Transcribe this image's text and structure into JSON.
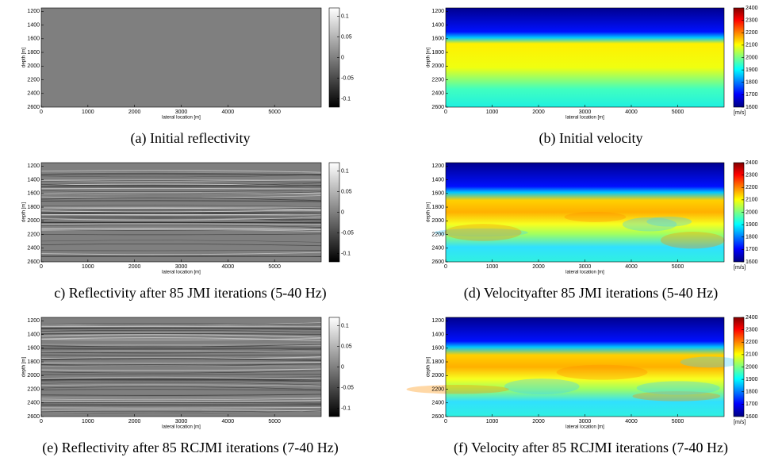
{
  "panels": [
    {
      "caption": "(a) Initial reflectivity",
      "ylabel": "depth [m]",
      "xlabel": "lateral location [m]",
      "xlim": [
        0,
        6000
      ],
      "ylim": [
        1150,
        2600
      ],
      "xticks": [
        0,
        1000,
        2000,
        3000,
        4000,
        5000
      ],
      "yticks": [
        1200,
        1400,
        1600,
        1800,
        2000,
        2200,
        2400,
        2600
      ],
      "colorbar": {
        "lim": [
          -0.12,
          0.12
        ],
        "ticks": [
          0.1,
          0.05,
          0,
          -0.05,
          -0.1
        ]
      }
    },
    {
      "caption": "(b) Initial velocity",
      "ylabel": "depth [m]",
      "xlabel": "lateral location [m]",
      "xlim": [
        0,
        6000
      ],
      "ylim": [
        1150,
        2600
      ],
      "xticks": [
        0,
        1000,
        2000,
        3000,
        4000,
        5000
      ],
      "yticks": [
        1200,
        1400,
        1600,
        1800,
        2000,
        2200,
        2400,
        2600
      ],
      "colorbar": {
        "lim": [
          1600,
          2400
        ],
        "ticks": [
          2400,
          2300,
          2200,
          2100,
          2000,
          1900,
          1800,
          1700,
          1600
        ],
        "unit": "[m/s]"
      }
    },
    {
      "caption": "c) Reflectivity after 85 JMI iterations (5-40 Hz)",
      "ylabel": "depth [m]",
      "xlabel": "lateral location [m]",
      "xlim": [
        0,
        6000
      ],
      "ylim": [
        1150,
        2600
      ],
      "xticks": [
        0,
        1000,
        2000,
        3000,
        4000,
        5000
      ],
      "yticks": [
        1200,
        1400,
        1600,
        1800,
        2000,
        2200,
        2400,
        2600
      ],
      "colorbar": {
        "lim": [
          -0.12,
          0.12
        ],
        "ticks": [
          0.1,
          0.05,
          0,
          -0.05,
          -0.1
        ]
      }
    },
    {
      "caption": "(d) Velocityafter 85 JMI iterations (5-40 Hz)",
      "ylabel": "depth [m]",
      "xlabel": "lateral location [m]",
      "xlim": [
        0,
        6000
      ],
      "ylim": [
        1150,
        2600
      ],
      "xticks": [
        0,
        1000,
        2000,
        3000,
        4000,
        5000
      ],
      "yticks": [
        1200,
        1400,
        1600,
        1800,
        2000,
        2200,
        2400,
        2600
      ],
      "colorbar": {
        "lim": [
          1600,
          2400
        ],
        "ticks": [
          2400,
          2300,
          2200,
          2100,
          2000,
          1900,
          1800,
          1700,
          1600
        ],
        "unit": "[m/s]"
      }
    },
    {
      "caption": "(e) Reflectivity after 85 RCJMI iterations (7-40 Hz)",
      "ylabel": "depth [m]",
      "xlabel": "lateral location [m]",
      "xlim": [
        0,
        6000
      ],
      "ylim": [
        1150,
        2600
      ],
      "xticks": [
        0,
        1000,
        2000,
        3000,
        4000,
        5000
      ],
      "yticks": [
        1200,
        1400,
        1600,
        1800,
        2000,
        2200,
        2400,
        2600
      ],
      "colorbar": {
        "lim": [
          -0.12,
          0.12
        ],
        "ticks": [
          0.1,
          0.05,
          0,
          -0.05,
          -0.1
        ]
      }
    },
    {
      "caption": "(f) Velocity after 85 RCJMI iterations (7-40 Hz)",
      "ylabel": "depth [m]",
      "xlabel": "lateral location [m]",
      "xlim": [
        0,
        6000
      ],
      "ylim": [
        1150,
        2600
      ],
      "xticks": [
        0,
        1000,
        2000,
        3000,
        4000,
        5000
      ],
      "yticks": [
        1200,
        1400,
        1600,
        1800,
        2000,
        2200,
        2400,
        2600
      ],
      "colorbar": {
        "lim": [
          1600,
          2400
        ],
        "ticks": [
          2400,
          2300,
          2200,
          2100,
          2000,
          1900,
          1800,
          1700,
          1600
        ],
        "unit": "[m/s]"
      }
    }
  ]
}
